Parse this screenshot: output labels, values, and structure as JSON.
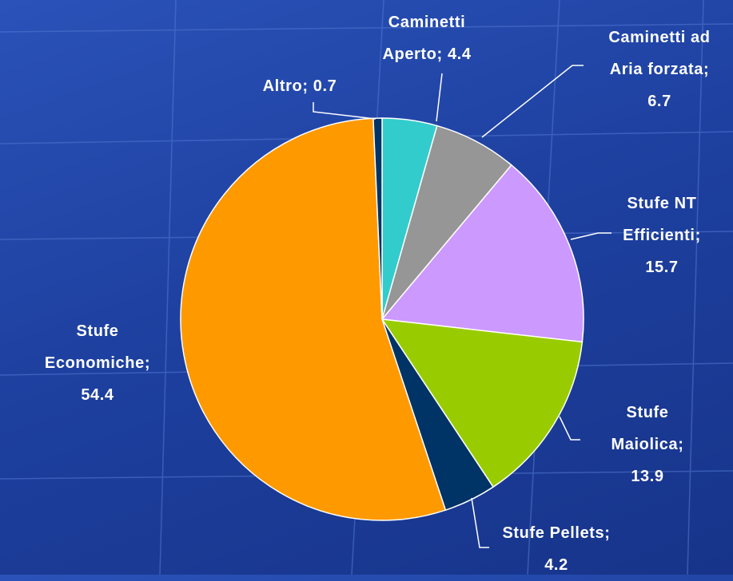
{
  "chart_data": {
    "type": "pie",
    "categories": [
      "Caminetti Aperto",
      "Caminetti ad Aria forzata",
      "Stufe NT Efficienti",
      "Stufe Maiolica",
      "Stufe Pellets",
      "Stufe Economiche",
      "Altro"
    ],
    "values": [
      4.4,
      6.7,
      15.7,
      13.9,
      4.2,
      54.4,
      0.7
    ],
    "colors": [
      "#33cccc",
      "#969696",
      "#cc99ff",
      "#99cc00",
      "#003366",
      "#ff9900",
      "#003366"
    ],
    "separator": ";"
  }
}
